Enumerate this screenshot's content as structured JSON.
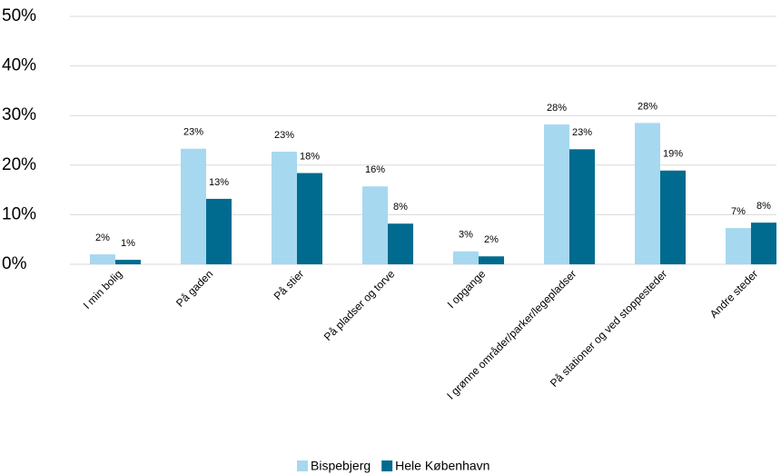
{
  "chart_data": {
    "type": "bar",
    "categories": [
      "I min bolig",
      "På gaden",
      "På stier",
      "På pladser og torve",
      "I opgange",
      "I grønne områder/parker/legepladser",
      "På stationer og ved stoppesteder",
      "Andre steder"
    ],
    "series": [
      {
        "name": "Bispebjerg",
        "color": "#a6d8f0",
        "values": [
          2.0,
          23.3,
          22.7,
          15.7,
          2.6,
          28.2,
          28.5,
          7.3
        ],
        "value_labels": [
          "2%",
          "23%",
          "23%",
          "16%",
          "3%",
          "28%",
          "28%",
          "7%"
        ]
      },
      {
        "name": "Hele København",
        "color": "#006b8f",
        "values": [
          0.9,
          13.2,
          18.4,
          8.2,
          1.6,
          23.2,
          18.9,
          8.4
        ],
        "value_labels": [
          "1%",
          "13%",
          "18%",
          "8%",
          "2%",
          "23%",
          "19%",
          "8%"
        ]
      }
    ],
    "ylim": [
      0,
      50
    ],
    "yticks": [
      {
        "value": 0,
        "label": "0%"
      },
      {
        "value": 10,
        "label": "10%"
      },
      {
        "value": 20,
        "label": "20%"
      },
      {
        "value": 30,
        "label": "30%"
      },
      {
        "value": 40,
        "label": "40%"
      },
      {
        "value": 50,
        "label": "50%"
      }
    ],
    "grid": true,
    "legend": "bottom"
  }
}
